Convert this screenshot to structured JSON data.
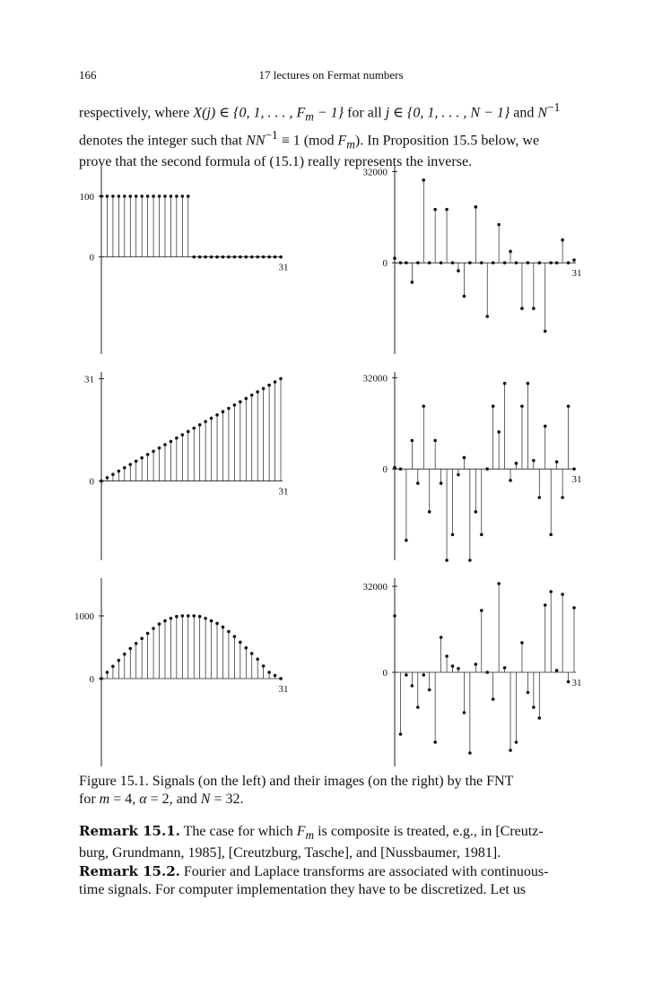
{
  "header": {
    "page_number": "166",
    "running_title": "17 lectures on Fermat numbers"
  },
  "intro_text": {
    "line1a": "respectively, where ",
    "line1b": "X(j) ∈ {0, 1, . . . , F",
    "line1c": "m",
    "line1d": " − 1}",
    "line1e": " for all ",
    "line1f": "j ∈ {0, 1, . . . , N − 1}",
    "line1g": " and ",
    "line1h": "N",
    "line1i": "−1",
    "line2a": "denotes the integer such that ",
    "line2b": "NN",
    "line2c": "−1",
    "line2d": " ≡ 1 (mod ",
    "line2e": "F",
    "line2f": "m",
    "line2g": ").",
    "line2h": " In Proposition 15.5 below, we",
    "line3": "prove that the second formula of (15.1) really represents the inverse."
  },
  "chart_data": [
    {
      "type": "stem",
      "position": "top-left",
      "y_ticks": [
        "100",
        "0"
      ],
      "x_tick": "31",
      "ylim": [
        -160,
        150
      ],
      "x": [
        0,
        1,
        2,
        3,
        4,
        5,
        6,
        7,
        8,
        9,
        10,
        11,
        12,
        13,
        14,
        15,
        16,
        17,
        18,
        19,
        20,
        21,
        22,
        23,
        24,
        25,
        26,
        27,
        28,
        29,
        30,
        31
      ],
      "values": [
        100,
        100,
        100,
        100,
        100,
        100,
        100,
        100,
        100,
        100,
        100,
        100,
        100,
        100,
        100,
        100,
        0,
        0,
        0,
        0,
        0,
        0,
        0,
        0,
        0,
        0,
        0,
        0,
        0,
        0,
        0,
        0
      ]
    },
    {
      "type": "stem",
      "position": "top-right",
      "y_ticks": [
        "32000",
        "0"
      ],
      "x_tick": "31",
      "ylim": [
        -32000,
        34000
      ],
      "x": [
        0,
        1,
        2,
        3,
        4,
        5,
        6,
        7,
        8,
        9,
        10,
        11,
        12,
        13,
        14,
        15,
        16,
        17,
        18,
        19,
        20,
        21,
        22,
        23,
        24,
        25,
        26,
        27,
        28,
        29,
        30,
        31
      ],
      "values": [
        1600,
        0,
        0,
        -6800,
        0,
        29000,
        0,
        18700,
        0,
        18700,
        0,
        -2800,
        -11700,
        0,
        19600,
        0,
        -18800,
        0,
        13400,
        0,
        4000,
        0,
        -16000,
        0,
        -16000,
        0,
        -24000,
        0,
        0,
        8000,
        0,
        1000
      ]
    },
    {
      "type": "stem",
      "position": "middle-left",
      "y_ticks": [
        "31",
        "0"
      ],
      "x_tick": "31",
      "ylim": [
        -24,
        33
      ],
      "x": [
        0,
        1,
        2,
        3,
        4,
        5,
        6,
        7,
        8,
        9,
        10,
        11,
        12,
        13,
        14,
        15,
        16,
        17,
        18,
        19,
        20,
        21,
        22,
        23,
        24,
        25,
        26,
        27,
        28,
        29,
        30,
        31
      ],
      "values": [
        0,
        1,
        2,
        3,
        4,
        5,
        6,
        7,
        8,
        9,
        10,
        11,
        12,
        13,
        14,
        15,
        16,
        17,
        18,
        19,
        20,
        21,
        22,
        23,
        24,
        25,
        26,
        27,
        28,
        29,
        30,
        31
      ]
    },
    {
      "type": "stem",
      "position": "middle-right",
      "y_ticks": [
        "32000",
        "0"
      ],
      "x_tick": "31",
      "ylim": [
        -32000,
        34000
      ],
      "x": [
        0,
        1,
        2,
        3,
        4,
        5,
        6,
        7,
        8,
        9,
        10,
        11,
        12,
        13,
        14,
        15,
        16,
        17,
        18,
        19,
        20,
        21,
        22,
        23,
        24,
        25,
        26,
        27,
        28,
        29,
        30,
        31
      ],
      "values": [
        500,
        0,
        -25000,
        10000,
        -5000,
        22000,
        -15000,
        10000,
        -5000,
        -32000,
        -23000,
        -2000,
        4000,
        -32000,
        -15000,
        -23000,
        0,
        22000,
        13000,
        30000,
        -4000,
        2000,
        22000,
        30000,
        3000,
        -10000,
        15000,
        -23000,
        2500,
        -10000,
        22000,
        0
      ]
    },
    {
      "type": "stem",
      "position": "bottom-left",
      "y_ticks": [
        "1000",
        "0"
      ],
      "x_tick": "31",
      "ylim": [
        -1400,
        1600
      ],
      "x": [
        0,
        1,
        2,
        3,
        4,
        5,
        6,
        7,
        8,
        9,
        10,
        11,
        12,
        13,
        14,
        15,
        16,
        17,
        18,
        19,
        20,
        21,
        22,
        23,
        24,
        25,
        26,
        27,
        28,
        29,
        30,
        31
      ],
      "values": [
        0,
        100,
        195,
        290,
        390,
        480,
        560,
        640,
        720,
        800,
        870,
        920,
        960,
        990,
        1000,
        1000,
        1000,
        990,
        960,
        920,
        880,
        820,
        750,
        670,
        580,
        490,
        400,
        310,
        200,
        100,
        50,
        0
      ]
    },
    {
      "type": "stem",
      "position": "bottom-right",
      "y_ticks": [
        "32000",
        "0"
      ],
      "x_tick": "31",
      "ylim": [
        -35000,
        35000
      ],
      "x": [
        0,
        1,
        2,
        3,
        4,
        5,
        6,
        7,
        8,
        9,
        10,
        11,
        12,
        13,
        14,
        15,
        16,
        17,
        18,
        19,
        20,
        21,
        22,
        23,
        24,
        25,
        26,
        27,
        28,
        29,
        30,
        31
      ],
      "values": [
        21000,
        -23000,
        -1000,
        -5000,
        -13000,
        -1000,
        -6500,
        -26000,
        13000,
        6000,
        2300,
        1400,
        -15000,
        -30000,
        3000,
        23000,
        0,
        -10000,
        33000,
        1700,
        -29000,
        -26000,
        11000,
        -7500,
        -13000,
        -17000,
        25000,
        30000,
        700,
        29000,
        -3500,
        24000
      ]
    }
  ],
  "caption": {
    "text": "Figure 15.1. Signals (on the left) and their images (on the right) by the FNT",
    "line2a": "for ",
    "line2b": "m",
    "line2c": " = 4, ",
    "line2d": "α",
    "line2e": " = 2, and ",
    "line2f": "N",
    "line2g": " = 32."
  },
  "remark1": {
    "label": "Remark 15.1.",
    "text": " The case for which ",
    "fm_f": "F",
    "fm_m": "m",
    "text2": " is composite is treated, e.g., in [Creutz-",
    "line2": "burg, Grundmann, 1985], [Creutzburg, Tasche], and [Nussbaumer, 1981]."
  },
  "remark2": {
    "label": "Remark 15.2.",
    "text": " Fourier and Laplace transforms are associated with continuous-",
    "line2": "time signals. For computer implementation they have to be discretized. Let us"
  }
}
